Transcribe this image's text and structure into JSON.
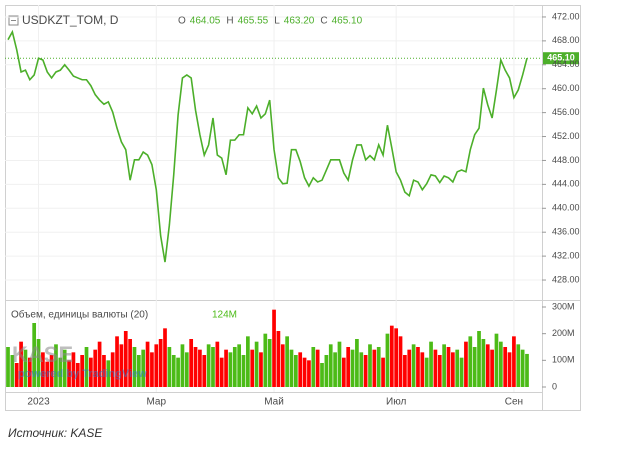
{
  "chart_data": [
    {
      "type": "line",
      "title": "USDKZT_TOM, D",
      "ohlc": [
        {
          "key": "O",
          "value": "464.05"
        },
        {
          "key": "H",
          "value": "465.55"
        },
        {
          "key": "L",
          "value": "463.20"
        },
        {
          "key": "C",
          "value": "465.10"
        }
      ],
      "categories": [
        null,
        null,
        null,
        null,
        null,
        null,
        null,
        "2023",
        null,
        null,
        null,
        null,
        null,
        null,
        null,
        null,
        null,
        null,
        null,
        null,
        null,
        null,
        null,
        null,
        null,
        null,
        null,
        null,
        null,
        null,
        null,
        null,
        null,
        null,
        "Мар",
        null,
        null,
        null,
        null,
        null,
        null,
        null,
        null,
        null,
        null,
        null,
        null,
        null,
        null,
        null,
        null,
        null,
        null,
        null,
        null,
        null,
        null,
        null,
        null,
        null,
        null,
        "Май",
        null,
        null,
        null,
        null,
        null,
        null,
        null,
        null,
        null,
        null,
        null,
        null,
        null,
        null,
        null,
        null,
        null,
        null,
        null,
        null,
        null,
        null,
        null,
        null,
        null,
        null,
        null,
        "Июл",
        null,
        null,
        null,
        null,
        null,
        null,
        null,
        null,
        null,
        null,
        null,
        null,
        null,
        null,
        null,
        null,
        null,
        null,
        null,
        null,
        null,
        null,
        null,
        null,
        null,
        null,
        "Сен",
        null,
        null,
        null
      ],
      "values": [
        468.2,
        469.5,
        466.5,
        462.8,
        463.1,
        461.5,
        462.3,
        465.1,
        464.8,
        462.8,
        461.8,
        462.8,
        463.1,
        464.0,
        463.1,
        462.1,
        461.8,
        461.5,
        461.5,
        460.5,
        459.0,
        458.1,
        457.4,
        457.8,
        456.1,
        453.4,
        451.1,
        449.8,
        444.7,
        448.1,
        448.1,
        449.4,
        448.9,
        447.3,
        443.1,
        435.4,
        431.0,
        437.2,
        445.6,
        455.6,
        461.8,
        462.3,
        461.8,
        456.4,
        452.3,
        448.9,
        450.6,
        455.1,
        448.9,
        448.4,
        445.6,
        451.4,
        451.4,
        452.3,
        452.3,
        456.8,
        455.8,
        457.1,
        455.1,
        455.8,
        458.1,
        449.8,
        445.1,
        444.1,
        444.2,
        449.8,
        449.8,
        447.8,
        445.1,
        443.7,
        445.1,
        444.4,
        444.7,
        446.4,
        448.1,
        448.1,
        448.1,
        445.9,
        444.7,
        448.1,
        450.6,
        450.6,
        448.1,
        448.8,
        448.1,
        450.6,
        448.9,
        453.9,
        450.1,
        446.1,
        444.7,
        442.7,
        442.1,
        444.7,
        444.4,
        443.1,
        444.1,
        445.6,
        445.4,
        444.3,
        445.4,
        445.1,
        444.4,
        446.1,
        446.4,
        446.1,
        449.8,
        452.3,
        453.4,
        460.1,
        457.3,
        455.1,
        459.8,
        464.8,
        463.1,
        461.8,
        458.5,
        459.8,
        462.3,
        465.1
      ],
      "color": "#4caf2a",
      "last_price": {
        "value": 465.1,
        "label": "465.10"
      },
      "ylim": [
        424.66,
        474.0
      ],
      "yticks": [
        {
          "value": 428,
          "label": "428.00"
        },
        {
          "value": 432,
          "label": "432.00"
        },
        {
          "value": 436,
          "label": "436.00"
        },
        {
          "value": 440,
          "label": "440.00"
        },
        {
          "value": 444,
          "label": "444.00"
        },
        {
          "value": 448,
          "label": "448.00"
        },
        {
          "value": 452,
          "label": "452.00"
        },
        {
          "value": 456,
          "label": "456.00"
        },
        {
          "value": 460,
          "label": "460.00"
        },
        {
          "value": 464,
          "label": "464.00"
        },
        {
          "value": 468,
          "label": "468.00"
        },
        {
          "value": 472,
          "label": "472.00"
        }
      ],
      "grid": true
    },
    {
      "type": "bar",
      "title": "Объем, единицы валюты (20)",
      "last_value_label": "124M",
      "values": [
        150,
        120,
        90,
        170,
        140,
        110,
        240,
        180,
        130,
        95,
        120,
        160,
        110,
        140,
        100,
        130,
        90,
        120,
        150,
        110,
        140,
        170,
        120,
        100,
        130,
        190,
        160,
        210,
        180,
        150,
        120,
        140,
        170,
        130,
        160,
        180,
        220,
        150,
        120,
        110,
        160,
        130,
        180,
        150,
        140,
        120,
        160,
        150,
        170,
        110,
        140,
        130,
        150,
        160,
        120,
        190,
        140,
        170,
        130,
        200,
        180,
        290,
        210,
        160,
        190,
        140,
        120,
        130,
        110,
        100,
        150,
        140,
        90,
        120,
        160,
        130,
        170,
        110,
        150,
        140,
        180,
        130,
        120,
        160,
        140,
        150,
        110,
        200,
        230,
        220,
        190,
        120,
        140,
        160,
        150,
        130,
        110,
        170,
        140,
        120,
        160,
        150,
        130,
        140,
        110,
        170,
        190,
        150,
        210,
        180,
        160,
        140,
        200,
        170,
        150,
        130,
        190,
        160,
        140,
        124
      ],
      "up_color": "#4cbb17",
      "down_color": "#ff0000",
      "ylim": [
        -18.75,
        318.75
      ],
      "yticks": [
        {
          "value": 300,
          "label": "300M"
        },
        {
          "value": 200,
          "label": "200M"
        },
        {
          "value": 100,
          "label": "100M"
        },
        0
      ]
    }
  ],
  "watermark": {
    "logo": "KASE",
    "text": "powered by TradingView"
  },
  "source": "Источник: KASE"
}
